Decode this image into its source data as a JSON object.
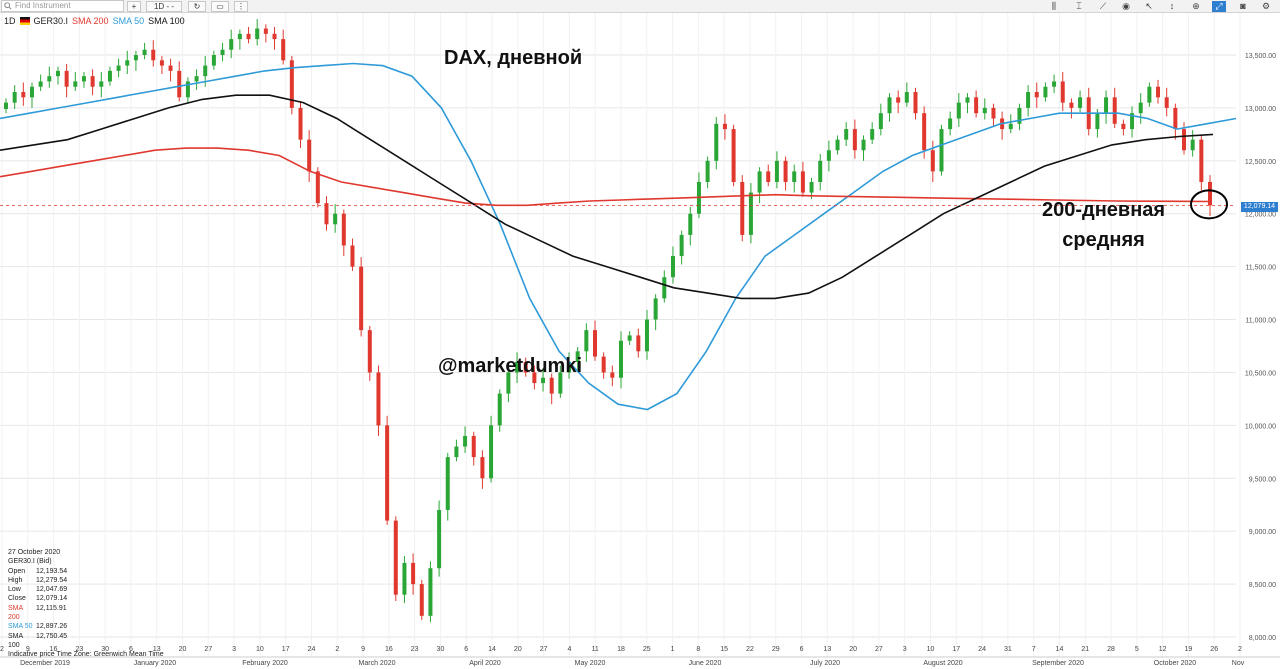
{
  "toolbar": {
    "search_placeholder": "Find Instrument",
    "add_label": "+",
    "timeframe_label": "1D",
    "timeframe_suffix": "- -",
    "refresh_icon": "refresh-icon",
    "layout_icon": "layout-icon",
    "more_icon": "more-icon"
  },
  "legend": {
    "timeframe": "1D",
    "instrument": "GER30.I",
    "sma200_label": "SMA 200",
    "sma50_label": "SMA 50",
    "sma100_label": "SMA 100",
    "sma200_color": "#e0382f",
    "sma50_color": "#2e9ad8",
    "sma100_color": "#111111"
  },
  "overlays": {
    "title": "DAX, дневной",
    "handle": "@marketdumki",
    "sma_note_line1": "200-дневная",
    "sma_note_line2": "средняя"
  },
  "info": {
    "date": "27 October 2020",
    "instrument": "GER30.I (Bid)",
    "rows": [
      {
        "k": "Open",
        "v": "12,193.54",
        "cls": ""
      },
      {
        "k": "High",
        "v": "12,279.54",
        "cls": ""
      },
      {
        "k": "Low",
        "v": "12,047.69",
        "cls": ""
      },
      {
        "k": "Close",
        "v": "12,079.14",
        "cls": ""
      },
      {
        "k": "SMA 200",
        "v": "12,115.91",
        "cls": "red"
      },
      {
        "k": "SMA 50",
        "v": "12,897.26",
        "cls": "blue"
      },
      {
        "k": "SMA 100",
        "v": "12,750.45",
        "cls": ""
      }
    ],
    "footer": "Indicative price   Time Zone: Greenwich Mean Time"
  },
  "last_price": "12,079.14",
  "colors": {
    "up": "#2aa636",
    "down": "#e0382f",
    "grid": "#e6e6e6"
  },
  "chart_data": {
    "type": "candlestick",
    "ylim": [
      7900,
      13800
    ],
    "y_ticks": [
      8000,
      8500,
      9000,
      9500,
      10000,
      10500,
      11000,
      11500,
      12000,
      12500,
      13000,
      13500
    ],
    "y_tick_labels": [
      "8,000.00",
      "8,500.00",
      "9,000.00",
      "9,500.00",
      "10,000.00",
      "10,500.00",
      "11,000.00",
      "11,500.00",
      "12,000.00",
      "12,500.00",
      "13,000.00",
      "13,500.00"
    ],
    "x_tick_labels": [
      "2",
      "9",
      "16",
      "23",
      "30",
      "6",
      "13",
      "20",
      "27",
      "3",
      "10",
      "17",
      "24",
      "2",
      "9",
      "16",
      "23",
      "30",
      "6",
      "14",
      "20",
      "27",
      "4",
      "11",
      "18",
      "25",
      "1",
      "8",
      "15",
      "22",
      "29",
      "6",
      "13",
      "20",
      "27",
      "3",
      "10",
      "17",
      "24",
      "31",
      "7",
      "14",
      "21",
      "28",
      "5",
      "12",
      "19",
      "26",
      "2"
    ],
    "month_labels": [
      "December 2019",
      "January 2020",
      "February 2020",
      "March 2020",
      "April 2020",
      "May 2020",
      "June 2020",
      "July 2020",
      "August 2020",
      "September 2020",
      "October 2020",
      "Nov"
    ],
    "close_trend": [
      13050,
      13150,
      13100,
      13200,
      13250,
      13300,
      13350,
      13200,
      13250,
      13300,
      13200,
      13250,
      13350,
      13400,
      13450,
      13500,
      13550,
      13450,
      13400,
      13350,
      13100,
      13250,
      13300,
      13400,
      13500,
      13550,
      13650,
      13700,
      13650,
      13750,
      13700,
      13650,
      13450,
      13000,
      12700,
      12400,
      12100,
      11900,
      12000,
      11700,
      11500,
      10900,
      10500,
      10000,
      9100,
      8400,
      8700,
      8500,
      8200,
      8650,
      9200,
      9700,
      9800,
      9900,
      9700,
      9500,
      10000,
      10300,
      10500,
      10600,
      10500,
      10400,
      10450,
      10300,
      10500,
      10600,
      10700,
      10900,
      10650,
      10500,
      10450,
      10800,
      10850,
      10700,
      11000,
      11200,
      11400,
      11600,
      11800,
      12000,
      12300,
      12500,
      12850,
      12800,
      12300,
      11800,
      12200,
      12400,
      12300,
      12500,
      12300,
      12400,
      12200,
      12300,
      12500,
      12600,
      12700,
      12800,
      12600,
      12700,
      12800,
      12950,
      13100,
      13050,
      13150,
      12950,
      12600,
      12400,
      12800,
      12900,
      13050,
      13100,
      12950,
      13000,
      12900,
      12800,
      12850,
      13000,
      13150,
      13100,
      13200,
      13250,
      13050,
      13000,
      13100,
      12800,
      12950,
      13100,
      12850,
      12800,
      12950,
      13050,
      13200,
      13100,
      13000,
      12800,
      12600,
      12700,
      12300,
      12079
    ],
    "series": [
      {
        "name": "SMA 50",
        "values": [
          12900,
          12950,
          13000,
          13050,
          13100,
          13150,
          13200,
          13250,
          13300,
          13350,
          13380,
          13400,
          13420,
          13400,
          13300,
          13000,
          12500,
          11900,
          11200,
          10700,
          10400,
          10200,
          10150,
          10300,
          10700,
          11200,
          11600,
          11800,
          12000,
          12200,
          12400,
          12550,
          12650,
          12750,
          12850,
          12900,
          12950,
          12950,
          12950,
          12900,
          12800,
          12850,
          12900
        ]
      },
      {
        "name": "SMA 200",
        "values": [
          12350,
          12400,
          12450,
          12500,
          12550,
          12600,
          12620,
          12620,
          12600,
          12550,
          12400,
          12300,
          12250,
          12200,
          12150,
          12100,
          12080,
          12080,
          12100,
          12120,
          12130,
          12140,
          12150,
          12160,
          12170,
          12180,
          12170,
          12165,
          12160,
          12155,
          12150,
          12145,
          12140,
          12135,
          12130,
          12125,
          12120,
          12118,
          12117,
          12116
        ]
      },
      {
        "name": "SMA 100",
        "values": [
          12600,
          12650,
          12700,
          12800,
          12900,
          13000,
          13080,
          13120,
          13120,
          13050,
          12900,
          12700,
          12500,
          12300,
          12100,
          11900,
          11750,
          11600,
          11500,
          11400,
          11300,
          11250,
          11200,
          11200,
          11250,
          11400,
          11600,
          11800,
          12000,
          12150,
          12300,
          12450,
          12550,
          12650,
          12700,
          12730,
          12750
        ]
      }
    ]
  }
}
